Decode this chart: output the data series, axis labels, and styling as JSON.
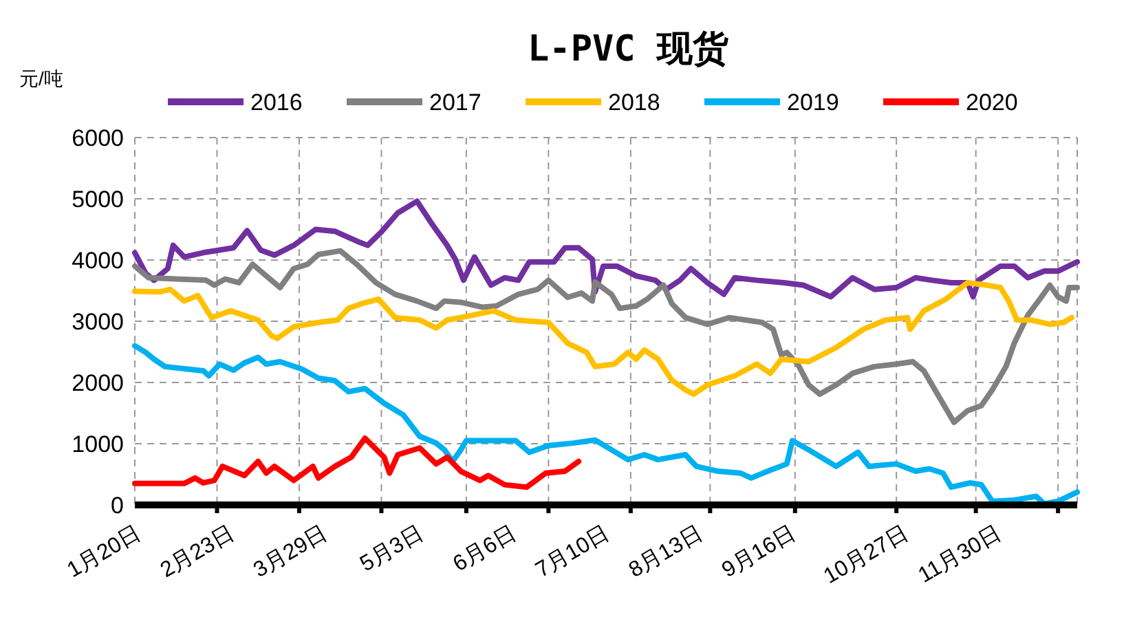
{
  "chart_data": {
    "type": "line",
    "title": "L-PVC 现货",
    "ylabel": "元/吨",
    "legend": "top",
    "grid": true,
    "line_style": "solid",
    "marker": "none",
    "xlim": [
      "--01-20",
      "--12-30"
    ],
    "xticks": [
      {
        "value": "--01-20",
        "label": "1月20日"
      },
      {
        "value": "--02-23",
        "label": "2月23日"
      },
      {
        "value": "--03-29",
        "label": "3月29日"
      },
      {
        "value": "--05-03",
        "label": "5月3日"
      },
      {
        "value": "--06-06",
        "label": "6月6日"
      },
      {
        "value": "--07-10",
        "label": "7月10日"
      },
      {
        "value": "--08-13",
        "label": "8月13日"
      },
      {
        "value": "--09-16",
        "label": "9月16日"
      },
      {
        "value": "--10-27",
        "label": "10月27日"
      },
      {
        "value": "--11-30",
        "label": "11月30日"
      },
      {
        "value": "--02-19",
        "label": null
      },
      {
        "value": "--03-21",
        "label": null
      },
      {
        "value": "--04-20",
        "label": null
      },
      {
        "value": "--05-21",
        "label": null
      },
      {
        "value": "--06-20",
        "label": null
      },
      {
        "value": "--07-20",
        "label": null
      },
      {
        "value": "--08-18",
        "label": null
      },
      {
        "value": "--09-18",
        "label": null
      },
      {
        "value": "--10-25",
        "label": null
      },
      {
        "value": "--11-23",
        "label": null
      },
      {
        "value": "--12-23",
        "label": null
      }
    ],
    "ylim": [
      0,
      6000
    ],
    "yticks": [
      0,
      1000,
      2000,
      3000,
      4000,
      5000,
      6000
    ],
    "series": [
      {
        "name": "2016",
        "color": "#7030a0",
        "x": [
          "--01-20",
          "--01-24",
          "--01-27",
          "--02-01",
          "--02-03",
          "--02-07",
          "--02-14",
          "--02-25",
          "--03-02",
          "--03-07",
          "--03-12",
          "--03-19",
          "--03-27",
          "--04-03",
          "--04-11",
          "--04-15",
          "--04-20",
          "--04-26",
          "--05-03",
          "--05-08",
          "--05-14",
          "--05-17",
          "--05-20",
          "--05-24",
          "--05-30",
          "--06-04",
          "--06-09",
          "--06-13",
          "--06-22",
          "--06-26",
          "--07-01",
          "--07-06",
          "--07-07",
          "--07-10",
          "--07-15",
          "--07-22",
          "--07-29",
          "--08-02",
          "--08-07",
          "--08-11",
          "--08-17",
          "--08-23",
          "--08-27",
          "--09-04",
          "--09-14",
          "--09-21",
          "--10-01",
          "--10-09",
          "--10-17",
          "--10-25",
          "--11-01",
          "--11-07",
          "--11-14",
          "--11-20",
          "--11-22",
          "--11-24",
          "--12-02",
          "--12-07",
          "--12-12",
          "--12-18",
          "--12-23",
          "--12-30"
        ],
        "values": [
          4120,
          3780,
          3670,
          3860,
          4240,
          4050,
          4120,
          4200,
          4480,
          4160,
          4080,
          4240,
          4500,
          4470,
          4310,
          4240,
          4460,
          4770,
          4960,
          4620,
          4240,
          4010,
          3670,
          4050,
          3590,
          3710,
          3670,
          3970,
          3970,
          4200,
          4200,
          4010,
          3480,
          3900,
          3900,
          3740,
          3670,
          3520,
          3670,
          3860,
          3630,
          3440,
          3710,
          3670,
          3630,
          3590,
          3400,
          3710,
          3520,
          3550,
          3710,
          3670,
          3630,
          3630,
          3400,
          3670,
          3900,
          3900,
          3710,
          3820,
          3820,
          3970
        ]
      },
      {
        "name": "2017",
        "color": "#808080",
        "x": [
          "--01-20",
          "--01-25",
          "--02-04",
          "--02-15",
          "--02-18",
          "--02-22",
          "--02-27",
          "--03-04",
          "--03-14",
          "--03-19",
          "--03-24",
          "--03-28",
          "--04-05",
          "--04-11",
          "--04-18",
          "--04-25",
          "--05-03",
          "--05-10",
          "--05-13",
          "--05-19",
          "--05-27",
          "--06-01",
          "--06-09",
          "--06-16",
          "--06-20",
          "--06-27",
          "--07-02",
          "--07-06",
          "--07-07",
          "--07-13",
          "--07-16",
          "--07-22",
          "--07-26",
          "--08-01",
          "--08-04",
          "--08-09",
          "--08-17",
          "--08-25",
          "--09-06",
          "--09-10",
          "--09-13",
          "--09-15",
          "--09-19",
          "--09-23",
          "--09-27",
          "--10-03",
          "--10-09",
          "--10-17",
          "--10-25",
          "--10-31",
          "--11-04",
          "--11-09",
          "--11-15",
          "--11-20",
          "--11-25",
          "--11-29",
          "--12-04",
          "--12-07",
          "--12-12",
          "--12-17",
          "--12-20",
          "--12-23",
          "--12-26",
          "--12-27",
          "--12-30"
        ],
        "values": [
          3900,
          3710,
          3690,
          3670,
          3590,
          3690,
          3630,
          3930,
          3550,
          3860,
          3930,
          4090,
          4150,
          3930,
          3630,
          3440,
          3330,
          3210,
          3330,
          3310,
          3230,
          3250,
          3440,
          3520,
          3670,
          3390,
          3460,
          3330,
          3640,
          3440,
          3210,
          3250,
          3360,
          3590,
          3290,
          3060,
          2950,
          3060,
          2980,
          2870,
          2450,
          2490,
          2300,
          1960,
          1810,
          1960,
          2150,
          2260,
          2300,
          2340,
          2190,
          1810,
          1350,
          1540,
          1620,
          1880,
          2260,
          2640,
          3100,
          3400,
          3590,
          3400,
          3330,
          3550,
          3550
        ]
      },
      {
        "name": "2018",
        "color": "#ffc000",
        "x": [
          "--01-20",
          "--01-29",
          "--02-02",
          "--02-07",
          "--02-12",
          "--02-17",
          "--02-24",
          "--03-06",
          "--03-11",
          "--03-13",
          "--03-19",
          "--03-28",
          "--04-04",
          "--04-08",
          "--04-13",
          "--04-19",
          "--04-25",
          "--05-04",
          "--05-10",
          "--05-14",
          "--05-19",
          "--05-31",
          "--06-08",
          "--06-20",
          "--06-27",
          "--07-04",
          "--07-07",
          "--07-14",
          "--07-19",
          "--07-22",
          "--07-25",
          "--07-30",
          "--08-04",
          "--08-09",
          "--08-12",
          "--08-17",
          "--08-27",
          "--09-04",
          "--09-09",
          "--09-13",
          "--09-23",
          "--10-03",
          "--10-13",
          "--10-21",
          "--10-29",
          "--10-30",
          "--11-04",
          "--11-12",
          "--11-20",
          "--11-27",
          "--12-02",
          "--12-05",
          "--12-08",
          "--12-13",
          "--12-20",
          "--12-25",
          "--12-28"
        ],
        "values": [
          3490,
          3480,
          3520,
          3330,
          3420,
          3060,
          3170,
          3020,
          2760,
          2720,
          2910,
          2980,
          3020,
          3210,
          3290,
          3360,
          3060,
          3020,
          2890,
          3020,
          3060,
          3170,
          3020,
          2980,
          2640,
          2490,
          2260,
          2300,
          2490,
          2380,
          2530,
          2380,
          2040,
          1880,
          1810,
          1960,
          2110,
          2300,
          2150,
          2380,
          2340,
          2570,
          2870,
          3020,
          3060,
          2870,
          3170,
          3360,
          3630,
          3590,
          3550,
          3330,
          3020,
          3020,
          2950,
          2980,
          3060
        ]
      },
      {
        "name": "2019",
        "color": "#00b0f0",
        "x": [
          "--01-20",
          "--01-24",
          "--01-27",
          "--01-31",
          "--02-14",
          "--02-16",
          "--02-20",
          "--02-25",
          "--03-01",
          "--03-06",
          "--03-09",
          "--03-14",
          "--03-22",
          "--03-28",
          "--04-03",
          "--04-08",
          "--04-14",
          "--04-21",
          "--04-28",
          "--05-04",
          "--05-10",
          "--05-13",
          "--05-16",
          "--05-19",
          "--05-21",
          "--05-27",
          "--06-08",
          "--06-13",
          "--06-20",
          "--06-29",
          "--07-07",
          "--07-19",
          "--07-25",
          "--07-30",
          "--08-09",
          "--08-13",
          "--08-21",
          "--08-29",
          "--09-02",
          "--09-08",
          "--09-15",
          "--09-17",
          "--09-23",
          "--10-03",
          "--10-11",
          "--10-15",
          "--10-25",
          "--11-01",
          "--11-06",
          "--11-11",
          "--11-14",
          "--11-21",
          "--11-25",
          "--11-29",
          "--12-07",
          "--12-15",
          "--12-18",
          "--12-23",
          "--12-30"
        ],
        "values": [
          2600,
          2490,
          2380,
          2260,
          2190,
          2110,
          2300,
          2200,
          2320,
          2410,
          2300,
          2340,
          2220,
          2070,
          2030,
          1850,
          1900,
          1660,
          1470,
          1120,
          1010,
          900,
          710,
          900,
          1050,
          1050,
          1050,
          860,
          970,
          1010,
          1060,
          740,
          820,
          740,
          820,
          630,
          550,
          520,
          440,
          550,
          670,
          1050,
          900,
          630,
          860,
          630,
          670,
          550,
          590,
          520,
          290,
          360,
          330,
          60,
          80,
          140,
          20,
          60,
          210
        ]
      },
      {
        "name": "2020",
        "color": "#ff0000",
        "x": [
          "--01-20",
          "--02-07",
          "--02-11",
          "--02-14",
          "--02-18",
          "--02-21",
          "--03-01",
          "--03-06",
          "--03-09",
          "--03-12",
          "--03-19",
          "--03-26",
          "--03-28",
          "--04-03",
          "--04-09",
          "--04-14",
          "--04-21",
          "--04-23",
          "--04-26",
          "--05-04",
          "--05-10",
          "--05-14",
          "--05-19",
          "--05-26",
          "--05-29",
          "--06-04",
          "--06-12",
          "--06-19",
          "--06-26",
          "--07-01"
        ],
        "values": [
          350,
          350,
          440,
          360,
          400,
          630,
          480,
          710,
          520,
          630,
          400,
          630,
          440,
          630,
          780,
          1090,
          780,
          520,
          820,
          930,
          670,
          780,
          550,
          400,
          480,
          330,
          290,
          520,
          550,
          710
        ]
      }
    ]
  }
}
